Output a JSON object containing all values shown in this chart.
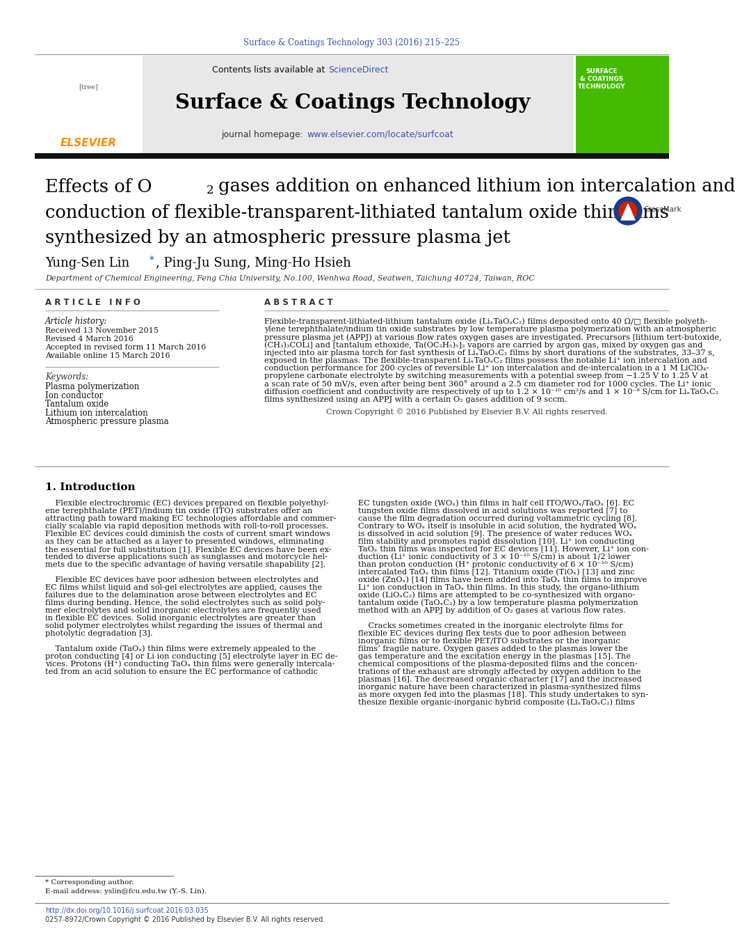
{
  "page_width": 9.92,
  "page_height": 13.23,
  "background_color": "#ffffff",
  "top_citation": "Surface & Coatings Technology 303 (2016) 215–225",
  "top_citation_color": "#3355aa",
  "header_bg_color": "#e8e8e8",
  "journal_name": "Surface & Coatings Technology",
  "sciencedirect_color": "#3355aa",
  "journal_url": "www.elsevier.com/locate/surfcoat",
  "journal_url_color": "#3355aa",
  "elsevier_color": "#ff8c00",
  "green_box_color": "#44bb00",
  "article_info_header": "A R T I C L E   I N F O",
  "abstract_header": "A B S T R A C T",
  "article_history_label": "Article history:",
  "received": "Received 13 November 2015",
  "revised": "Revised 4 March 2016",
  "accepted": "Accepted in revised form 11 March 2016",
  "available": "Available online 15 March 2016",
  "keywords": [
    "Plasma polymerization",
    "Ion conductor",
    "Tantalum oxide",
    "Lithium ion intercalation",
    "Atmospheric pressure plasma"
  ],
  "abstract_text": "Flexible-transparent-lithiated-lithium tantalum oxide (LiₓTaOₓC₂) films deposited onto 40 Ω/□ flexible polyethylene terephthalate/indium tin oxide substrates by low temperature plasma polymerization with an atmospheric pressure plasma jet (APPJ) at various flow rates oxygen gases are investigated. Precursors [lithium tert-butoxide, (CH₃)₃COLi] and [tantalum ethoxide, Ta(OC₂H₅)₅]₂ vapors are carried by argon gas, mixed by oxygen gas and injected into air plasma torch for fast synthesis of LiₓTaOₓC₂ films by short durations of the substrates, 33–37 s, exposed in the plasmas. The flexible-transparent LiₓTaOₓC₂ films possess the notable Li⁺ ion intercalation and conduction performance for 200 cycles of reversible Li⁺ ion intercalation and de-intercalation in a 1 M LiClO₄-propylene carbonate electrolyte by switching measurements with a potential sweep from −1.25 V to 1.25 V at a scan rate of 50 mV/s, even after being bent 360° around a 2.5 cm diameter rod for 1000 cycles. The Li⁺ ionic diffusion coefficient and conductivity are respectively of up to 1.2 × 10⁻¹⁰ cm²/s and 1 × 10⁻⁸ S/cm for LiₓTaOₓC₂ films synthesized using an APPJ with a certain O₂ gases addition of 9 sccm.",
  "copyright_text": "Crown Copyright © 2016 Published by Elsevier B.V. All rights reserved.",
  "intro_header": "1. Introduction",
  "intro_col1_p1": "Flexible electrochromic (EC) devices prepared on flexible polyethylene terephthalate (PET)/indium tin oxide (ITO) substrates offer an attracting path toward making EC technologies affordable and commercially scalable via rapid deposition methods with roll-to-roll processes. Flexible EC devices could diminish the costs of current smart windows as they can be attached as a layer to presented windows, eliminating the essential for full substitution [1]. Flexible EC devices have been extended to diverse applications such as sunglasses and motorcycle helmets due to the specific advantage of having versatile shapability [2].",
  "intro_col1_p2": "    Flexible EC devices have poor adhesion between electrolytes and EC films whilst liquid and sol-gel electrolytes are applied, causes the failures due to the delamination arose between electrolytes and EC films during bending. Hence, the solid electrolytes such as solid polymer electrolytes and solid inorganic electrolytes are frequently used in flexible EC devices. Solid inorganic electrolytes are greater than solid polymer electrolytes whilst regarding the issues of thermal and photolytic degradation [3].",
  "intro_col1_p3": "    Tantalum oxide (TaOₓ) thin films were extremely appealed to the proton conducting [4] or Li ion conducting [5] electrolyte layer in EC devices. Protons (H⁺) conducting TaOₓ thin films were generally intercalated from an acid solution to ensure the EC performance of cathodic",
  "intro_col2_p1": "EC tungsten oxide (WOₓ) thin films in half cell ITO/WOₓ/TaOₓ [6]. EC tungsten oxide films dissolved in acid solutions was reported [7] to cause the film degradation occurred during voltammetric cycling [8]. Contrary to WOₓ itself is insoluble in acid solution, the hydrated WOₓ is dissolved in acid solution [9]. The presence of water reduces WOₓ film stability and promotes rapid dissolution [10]. Li⁺ ion conducting TaOₓ thin films was inspected for EC devices [11]. However, Li⁺ ion conduction (Li⁺ ionic conductivity of 3 × 10⁻¹⁰ S/cm) is about 1/2 lower than proton conduction (H⁺ protonic conductivity of 6 × 10⁻¹⁰ S/cm) intercalated TaOₓ thin films [12]. Titanium oxide (TiOₓ) [13] and zinc oxide (ZnOₓ) [14] films have been added into TaOₓ thin films to improve Li⁺ ion conduction in TaOₓ thin films. In this study, the organo-lithium oxide (LiOₓC₂) films are attempted to be co-synthesized with organotantalum oxide (TaOₓC₂) by a low temperature plasma polymerization method with an APPJ by addition of O₂ gases at various flow rates.",
  "intro_col2_p2": "    Cracks sometimes created in the inorganic electrolyte films for flexible EC devices during flex tests due to poor adhesion between inorganic films or to flexible PET/ITO substrates or the inorganic films’ fragile nature. Oxygen gases added to the plasmas lower the gas temperature and the excitation energy in the plasmas [15]. The chemical compositions of the plasma-deposited films and the concentrations of the exhaust are strongly affected by oxygen addition to the plasmas [16]. The decreased organic character [17] and the increased inorganic nature have been characterized in plasma-synthesized films as more oxygen fed into the plasmas [18]. This study undertakes to synthesize flexible organic-inorganic hybrid composite (LiₓTaOₓC₂) films",
  "affiliation": "Department of Chemical Engineering, Feng Chia University, No.100, Wenhwa Road, Seatwen, Taichung 40724, Taiwan, ROC",
  "footnote_star": "* Corresponding author.",
  "footnote_email": "E-mail address: yslin@fcu.edu.tw (Y.-S. Lin).",
  "doi_text": "http://dx.doi.org/10.1016/j.surfcoat.2016.03.035",
  "issn_text": "0257-8972/Crown Copyright © 2016 Published by Elsevier B.V. All rights reserved."
}
